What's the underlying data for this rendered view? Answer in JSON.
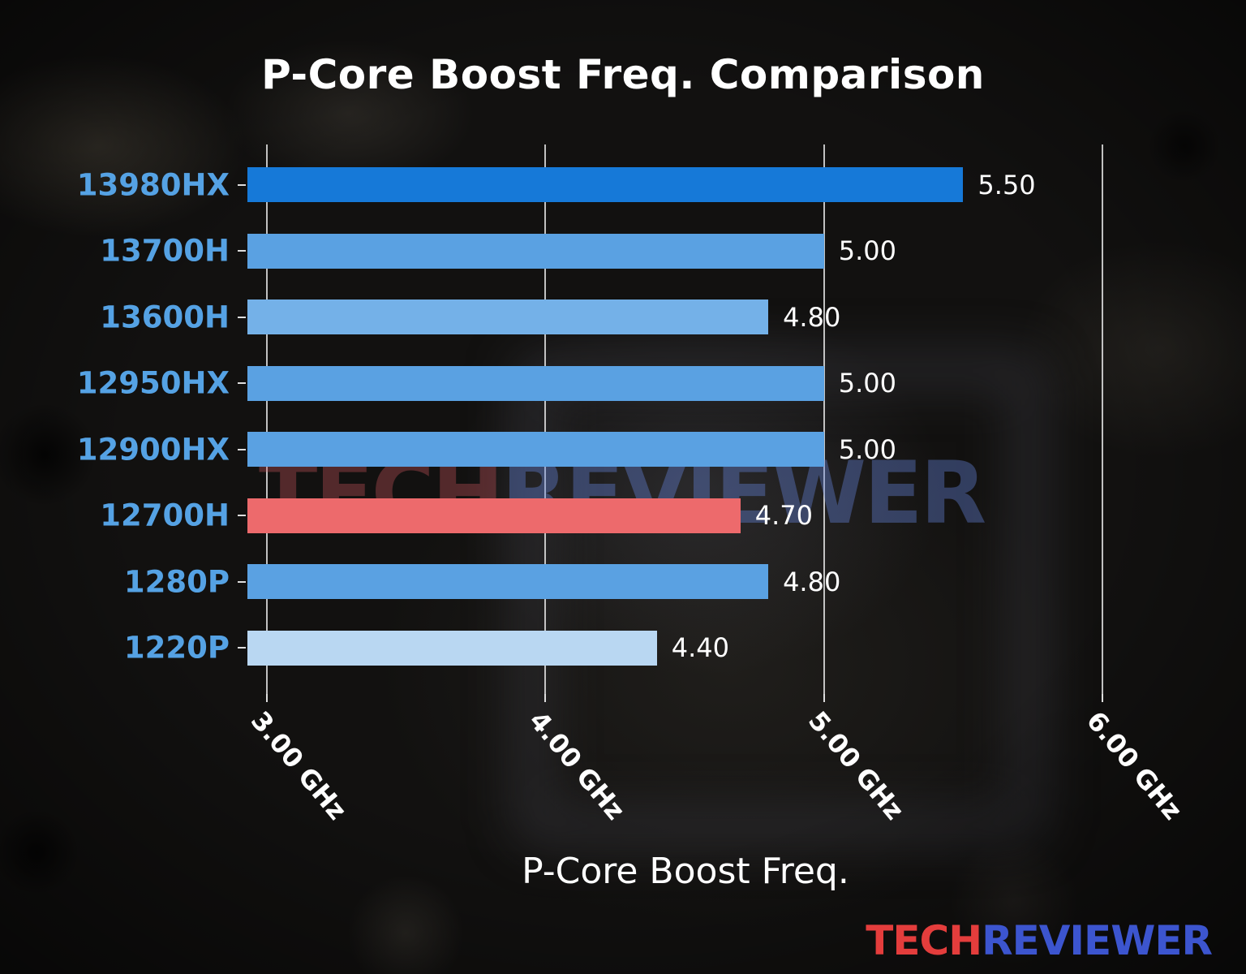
{
  "chart_data": {
    "type": "bar",
    "orientation": "horizontal",
    "title": "P-Core Boost Freq. Comparison",
    "xlabel": "P-Core Boost Freq.",
    "categories": [
      "13980HX",
      "13700H",
      "13600H",
      "12950HX",
      "12900HX",
      "12700H",
      "1280P",
      "1220P"
    ],
    "values": [
      5.5,
      5.0,
      4.8,
      5.0,
      5.0,
      4.7,
      4.8,
      4.4
    ],
    "value_labels": [
      "5.50",
      "5.00",
      "4.80",
      "5.00",
      "5.00",
      "4.70",
      "4.80",
      "4.40"
    ],
    "value_unit": "GHz",
    "bar_colors": [
      "#1679d8",
      "#5aa1e2",
      "#74b1e8",
      "#5aa1e2",
      "#5aa1e2",
      "#ed6a6c",
      "#5aa1e2",
      "#b9d7f2"
    ],
    "highlighted_category": "12700H",
    "highlight_color": "#ed6a6c",
    "x_ticks": [
      {
        "value": 3,
        "label": "3.00 GHz"
      },
      {
        "value": 4,
        "label": "4.00 GHz"
      },
      {
        "value": 5,
        "label": "5.00 GHz"
      },
      {
        "value": 6,
        "label": "6.00 GHz"
      }
    ],
    "xlim": [
      2.93,
      6.09
    ],
    "grid": true,
    "legend": null
  },
  "watermark": {
    "part1": "TECH",
    "part2": "REVIEWER"
  },
  "brand": {
    "part1": "TECH",
    "part2": "REVIEWER"
  },
  "colors": {
    "background": "#121110",
    "title": "#ffffff",
    "category_label": "#55a2e4",
    "tick_label": "#ffffff",
    "value_label": "#ffffff",
    "gridline": "#e1e1e1",
    "brand_tech": "#e43d3c",
    "brand_reviewer": "#3c55cf"
  }
}
